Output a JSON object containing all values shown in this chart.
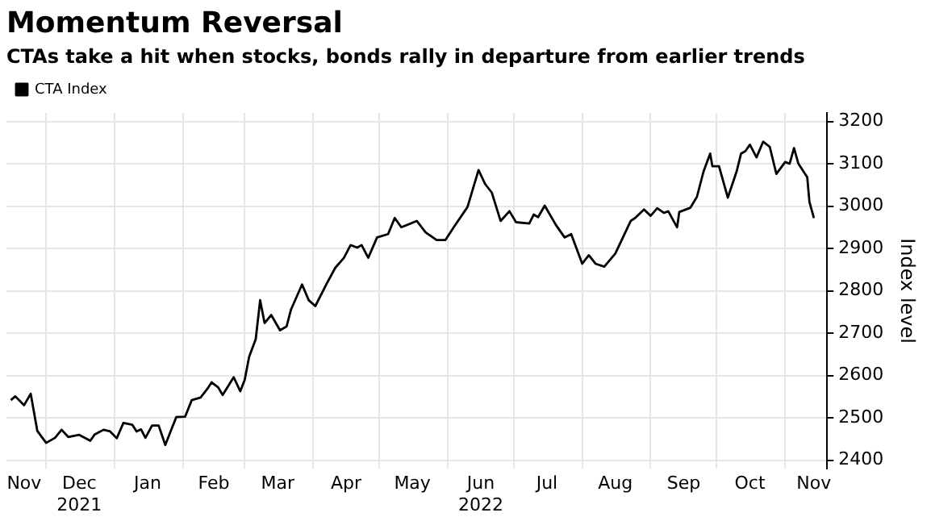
{
  "chart_data": {
    "type": "line",
    "title": "Momentum Reversal",
    "subtitle": "CTAs take a hit when stocks, bonds rally in departure from earlier trends",
    "ylabel": "Index level",
    "legend": "top left",
    "grid": true,
    "xlim": [
      "2021-11-13",
      "2022-11-20"
    ],
    "ylim": [
      2380,
      3220
    ],
    "yticks": [
      2400,
      2500,
      2600,
      2700,
      2800,
      2900,
      3000,
      3100,
      3200
    ],
    "xticks": [
      {
        "value": "2021-11-21",
        "label": "Nov"
      },
      {
        "value": "2021-12-01",
        "label": null
      },
      {
        "value": "2021-12-16",
        "label": "Dec\n2021"
      },
      {
        "value": "2022-01-01",
        "label": null
      },
      {
        "value": "2022-01-16",
        "label": "Jan"
      },
      {
        "value": "2022-02-01",
        "label": null
      },
      {
        "value": "2022-02-15",
        "label": "Feb"
      },
      {
        "value": "2022-03-01",
        "label": null
      },
      {
        "value": "2022-03-16",
        "label": "Mar"
      },
      {
        "value": "2022-04-01",
        "label": null
      },
      {
        "value": "2022-04-16",
        "label": "Apr"
      },
      {
        "value": "2022-05-01",
        "label": null
      },
      {
        "value": "2022-05-16",
        "label": "May"
      },
      {
        "value": "2022-06-01",
        "label": null
      },
      {
        "value": "2022-06-16",
        "label": "Jun\n2022"
      },
      {
        "value": "2022-07-01",
        "label": null
      },
      {
        "value": "2022-07-16",
        "label": "Jul"
      },
      {
        "value": "2022-08-01",
        "label": null
      },
      {
        "value": "2022-08-16",
        "label": "Aug"
      },
      {
        "value": "2022-09-01",
        "label": null
      },
      {
        "value": "2022-09-16",
        "label": "Sep"
      },
      {
        "value": "2022-10-01",
        "label": null
      },
      {
        "value": "2022-10-16",
        "label": "Oct"
      },
      {
        "value": "2022-11-01",
        "label": null
      },
      {
        "value": "2022-11-14",
        "label": "Nov"
      }
    ],
    "x": [
      "2021-11-15",
      "2021-11-17",
      "2021-11-21",
      "2021-11-24",
      "2021-11-27",
      "2021-12-01",
      "2021-12-05",
      "2021-12-08",
      "2021-12-11",
      "2021-12-16",
      "2021-12-21",
      "2021-12-23",
      "2021-12-27",
      "2021-12-30",
      "2022-01-02",
      "2022-01-05",
      "2022-01-09",
      "2022-01-11",
      "2022-01-13",
      "2022-01-15",
      "2022-01-18",
      "2022-01-21",
      "2022-01-24",
      "2022-01-27",
      "2022-01-29",
      "2022-02-02",
      "2022-02-05",
      "2022-02-09",
      "2022-02-12",
      "2022-02-14",
      "2022-02-17",
      "2022-02-19",
      "2022-02-24",
      "2022-02-27",
      "2022-03-01",
      "2022-03-03",
      "2022-03-06",
      "2022-03-08",
      "2022-03-10",
      "2022-03-13",
      "2022-03-17",
      "2022-03-20",
      "2022-03-22",
      "2022-03-27",
      "2022-03-30",
      "2022-04-02",
      "2022-04-07",
      "2022-04-11",
      "2022-04-15",
      "2022-04-18",
      "2022-04-21",
      "2022-04-23",
      "2022-04-26",
      "2022-04-30",
      "2022-05-05",
      "2022-05-08",
      "2022-05-11",
      "2022-05-18",
      "2022-05-22",
      "2022-05-27",
      "2022-05-31",
      "2022-06-04",
      "2022-06-10",
      "2022-06-15",
      "2022-06-18",
      "2022-06-21",
      "2022-06-25",
      "2022-06-29",
      "2022-07-02",
      "2022-07-08",
      "2022-07-10",
      "2022-07-12",
      "2022-07-15",
      "2022-07-20",
      "2022-07-24",
      "2022-07-27",
      "2022-08-01",
      "2022-08-04",
      "2022-08-07",
      "2022-08-11",
      "2022-08-16",
      "2022-08-23",
      "2022-08-25",
      "2022-08-29",
      "2022-09-01",
      "2022-09-04",
      "2022-09-07",
      "2022-09-09",
      "2022-09-13",
      "2022-09-14",
      "2022-09-19",
      "2022-09-22",
      "2022-09-25",
      "2022-09-28",
      "2022-09-29",
      "2022-10-02",
      "2022-10-06",
      "2022-10-10",
      "2022-10-12",
      "2022-10-14",
      "2022-10-16",
      "2022-10-19",
      "2022-10-22",
      "2022-10-25",
      "2022-10-28",
      "2022-11-01",
      "2022-11-03",
      "2022-11-05",
      "2022-11-07",
      "2022-11-11",
      "2022-11-12",
      "2022-11-14"
    ],
    "series": [
      {
        "name": "CTA Index",
        "color": "#000000",
        "values": [
          2542,
          2551,
          2530,
          2557,
          2469,
          2441,
          2453,
          2472,
          2455,
          2460,
          2446,
          2461,
          2472,
          2468,
          2452,
          2488,
          2484,
          2468,
          2473,
          2453,
          2482,
          2482,
          2436,
          2476,
          2502,
          2503,
          2542,
          2548,
          2568,
          2584,
          2572,
          2554,
          2596,
          2563,
          2590,
          2644,
          2686,
          2778,
          2724,
          2743,
          2707,
          2716,
          2756,
          2815,
          2778,
          2764,
          2815,
          2854,
          2878,
          2908,
          2902,
          2908,
          2878,
          2926,
          2934,
          2972,
          2950,
          2965,
          2938,
          2920,
          2920,
          2952,
          2998,
          3085,
          3052,
          3032,
          2965,
          2988,
          2962,
          2959,
          2980,
          2974,
          3001,
          2956,
          2926,
          2934,
          2864,
          2884,
          2864,
          2857,
          2888,
          2965,
          2972,
          2992,
          2977,
          2995,
          2984,
          2988,
          2950,
          2986,
          2996,
          3022,
          3082,
          3124,
          3094,
          3094,
          3020,
          3082,
          3124,
          3130,
          3145,
          3115,
          3152,
          3140,
          3076,
          3104,
          3100,
          3137,
          3100,
          3068,
          3010,
          2972
        ]
      }
    ]
  }
}
